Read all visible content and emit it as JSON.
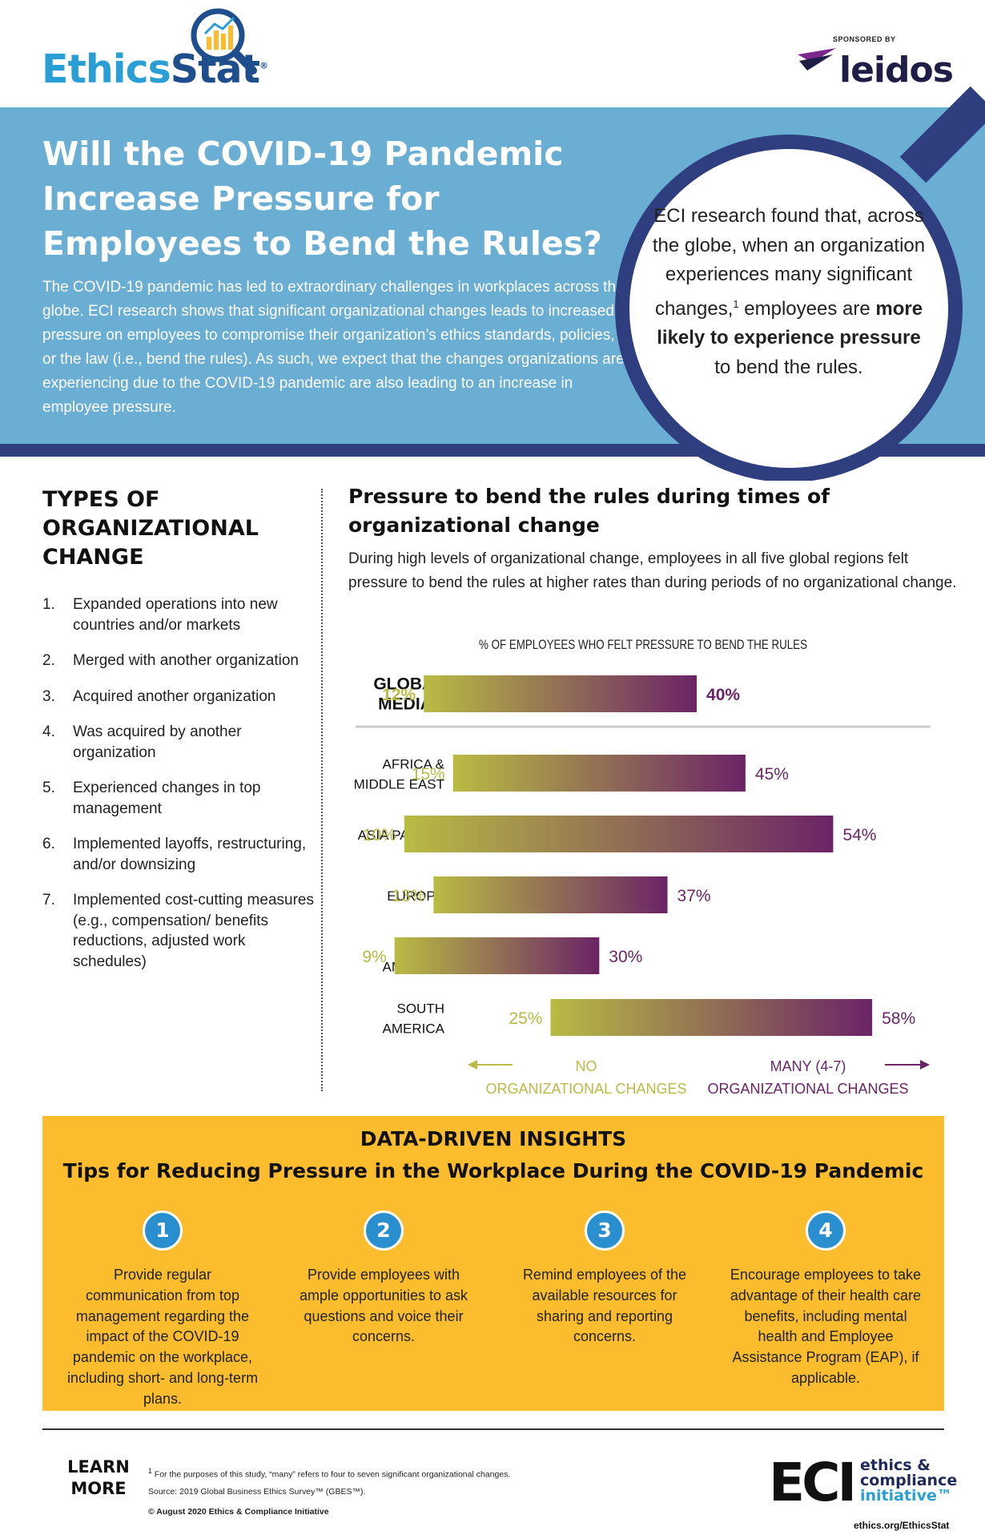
{
  "header": {
    "logo_part1": "Ethics",
    "logo_part2": "Stat",
    "logo_reg": "®",
    "sponsored_by": "SPONSORED BY",
    "sponsor_name": "leidos"
  },
  "banner": {
    "title": "Will the COVID-19 Pandemic Increase Pressure for Employees to Bend the Rules?",
    "intro": "The COVID-19 pandemic has led to extraordinary challenges in workplaces across the globe. ECI research shows that significant organizational changes leads to increased pressure on employees to compromise their organization’s ethics standards, policies, or the law (i.e., bend the rules). As such, we expect that the changes organizations are experiencing due to the COVID-19 pandemic are also leading to an increase in employee pressure.",
    "circle_text_1": "ECI research found that, across the globe, when an organization experiences many significant changes,",
    "circle_sup": "1",
    "circle_text_2": " employees are ",
    "circle_bold": "more likely to experience pressure",
    "circle_text_3": " to bend the rules."
  },
  "types": {
    "title": "TYPES OF ORGANIZATIONAL CHANGE",
    "items": [
      {
        "num": "1.",
        "text": "Expanded operations into new countries and/or markets"
      },
      {
        "num": "2.",
        "text": "Merged with another organization"
      },
      {
        "num": "3.",
        "text": "Acquired another organization"
      },
      {
        "num": "4.",
        "text": "Was acquired by another organization"
      },
      {
        "num": "5.",
        "text": "Experienced changes in top management"
      },
      {
        "num": "6.",
        "text": "Implemented layoffs, restructuring, and/or downsizing"
      },
      {
        "num": "7.",
        "text": "Implemented cost-cutting measures (e.g., compensation/ benefits reductions, adjusted work schedules)"
      }
    ]
  },
  "chart_section": {
    "title": "Pressure to bend the rules during times of organizational change",
    "description": "During high levels of organizational change, employees in all five global regions felt pressure to bend the rules at higher rates than during periods of no organizational change."
  },
  "chart_data": {
    "type": "bar",
    "title": "% OF EMPLOYEES WHO FELT PRESSURE TO BEND THE RULES",
    "categories": [
      {
        "lines": [
          "GLOBAL",
          "MEDIAN"
        ],
        "bold": true
      },
      {
        "lines": [
          "AFRICA &",
          "MIDDLE EAST"
        ],
        "bold": false
      },
      {
        "lines": [
          "ASIA PACIFIC"
        ],
        "bold": false
      },
      {
        "lines": [
          "EUROPE"
        ],
        "bold": false
      },
      {
        "lines": [
          "NORTH",
          "AMERICA"
        ],
        "bold": false
      },
      {
        "lines": [
          "SOUTH",
          "AMERICA"
        ],
        "bold": false
      }
    ],
    "series": [
      {
        "name": "NO ORGANIZATIONAL CHANGES",
        "values": [
          12,
          15,
          10,
          13,
          9,
          25
        ],
        "labels": [
          "12%",
          "15%",
          "10%",
          "13%",
          "9%",
          "25%"
        ],
        "color": "#b9bb44"
      },
      {
        "name": "MANY (4-7) ORGANIZATIONAL CHANGES",
        "values": [
          40,
          45,
          54,
          37,
          30,
          58
        ],
        "labels": [
          "40%",
          "45%",
          "54%",
          "37%",
          "30%",
          "58%"
        ],
        "color": "#6b2466"
      }
    ],
    "legend_left": [
      "NO",
      "ORGANIZATIONAL CHANGES"
    ],
    "legend_right": [
      "MANY (4-7)",
      "ORGANIZATIONAL CHANGES"
    ],
    "xlim": [
      5,
      63
    ]
  },
  "insights": {
    "kicker": "DATA-DRIVEN INSIGHTS",
    "title": "Tips for Reducing Pressure in the Workplace During the COVID-19 Pandemic",
    "tips": [
      {
        "num": "1",
        "text": "Provide regular communication from top management regarding the impact of the COVID-19 pandemic on the workplace, including short- and long-term plans."
      },
      {
        "num": "2",
        "text": "Provide employees with ample opportunities to ask questions and voice their concerns."
      },
      {
        "num": "3",
        "text": "Remind employees of the available resources for sharing and reporting concerns."
      },
      {
        "num": "4",
        "text": "Encourage employees to take advantage of their health care benefits, including mental health and Employee Assistance Program (EAP), if applicable."
      }
    ]
  },
  "footer": {
    "learn_more": "LEARN MORE",
    "note_sup": "1",
    "note": " For the purposes of this study, “many” refers to four to seven significant organizational changes.",
    "source": "Source: 2019 Global Business Ethics Survey™ (GBES™).",
    "copyright": "© August 2020 Ethics & Compliance Initiative",
    "eci_letters": "ECI",
    "eci_line1": "ethics &",
    "eci_line2": "compliance",
    "eci_line3": "initiative™",
    "url": "ethics.org/EthicsStat"
  }
}
